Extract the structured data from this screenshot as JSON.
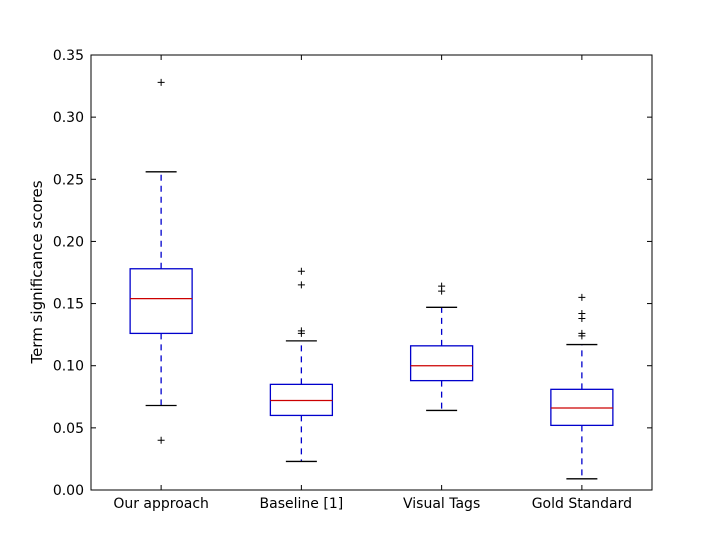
{
  "chart_data": {
    "type": "boxplot",
    "title": "",
    "xlabel": "",
    "ylabel": "Term significance scores",
    "ylim": [
      0.0,
      0.35
    ],
    "yticks": [
      "0.00",
      "0.05",
      "0.10",
      "0.15",
      "0.20",
      "0.25",
      "0.30",
      "0.35"
    ],
    "grid": false,
    "colors": {
      "box": "#0000cc",
      "median": "#cc0000",
      "whisker": "#0000cc",
      "cap": "#000000",
      "flier": "#000000",
      "axes": "#000000"
    },
    "boxes": [
      {
        "label": "Our approach",
        "whislo": 0.068,
        "q1": 0.126,
        "med": 0.154,
        "q3": 0.178,
        "whishi": 0.256,
        "fliers": [
          0.328,
          0.04
        ]
      },
      {
        "label": "Baseline [1]",
        "whislo": 0.023,
        "q1": 0.06,
        "med": 0.072,
        "q3": 0.085,
        "whishi": 0.12,
        "fliers": [
          0.126,
          0.128,
          0.165,
          0.176
        ]
      },
      {
        "label": "Visual Tags",
        "whislo": 0.064,
        "q1": 0.088,
        "med": 0.1,
        "q3": 0.116,
        "whishi": 0.147,
        "fliers": [
          0.16,
          0.164
        ]
      },
      {
        "label": "Gold Standard",
        "whislo": 0.009,
        "q1": 0.052,
        "med": 0.066,
        "q3": 0.081,
        "whishi": 0.117,
        "fliers": [
          0.124,
          0.126,
          0.138,
          0.142,
          0.155
        ]
      }
    ]
  }
}
